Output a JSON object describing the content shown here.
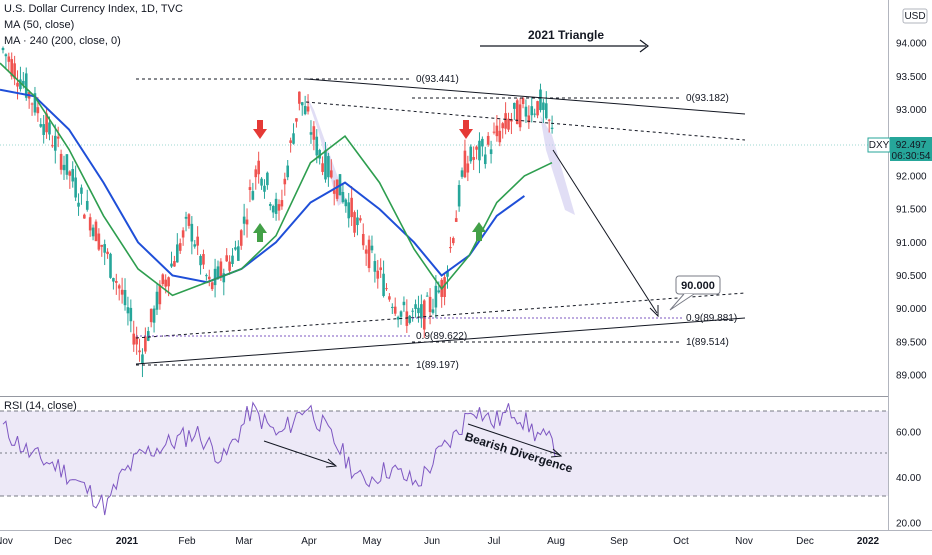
{
  "header": {
    "symbol_line": "U.S. Dollar Currency Index, 1D, TVC",
    "ma50_label": "MA (50, close)",
    "ma200_label": "MA · 240 (200, close, 0)",
    "currency_badge": "USD"
  },
  "price_tag": {
    "ticker": "DXY",
    "price": "92.497",
    "countdown": "06:30:54"
  },
  "annotations": {
    "triangle_title": "2021 Triangle",
    "target_label": "90.000",
    "divergence_label": "Bearish Divergence",
    "fib_top": "0(93.441)",
    "fib_second": "0(93.182)",
    "fib_bottom": "1(89.197)",
    "fib_second_bottom": "1(89.514)",
    "fib_mid_left": "0.9(89.622)",
    "fib_mid_right": "0.9(89.881)"
  },
  "rsi": {
    "label": "RSI (14, close)",
    "ticks": [
      "60.00",
      "40.00",
      "20.00"
    ]
  },
  "colors": {
    "up": "#26a69a",
    "down": "#ef5350",
    "ma50": "#2e9e4f",
    "ma200": "#1f4fd8",
    "rsi_line": "#7e57c2",
    "rsi_band": "#e8e4f6",
    "arrow_red": "#e53935",
    "arrow_green": "#43a047"
  },
  "chart_data": {
    "type": "candlestick",
    "price_axis": {
      "ticks": [
        "94.000",
        "93.500",
        "93.000",
        "92.500",
        "92.000",
        "91.500",
        "91.000",
        "90.500",
        "90.000",
        "89.500",
        "89.000"
      ],
      "range": [
        88.7,
        94.5
      ]
    },
    "x_axis": {
      "ticks": [
        "Nov",
        "Dec",
        "2021",
        "Feb",
        "Mar",
        "Apr",
        "May",
        "Jun",
        "Jul",
        "Aug",
        "Sep",
        "Oct",
        "Nov",
        "Dec",
        "2022"
      ]
    },
    "ma50_points": [
      [
        0,
        93.7
      ],
      [
        0.05,
        93.2
      ],
      [
        0.1,
        92.4
      ],
      [
        0.15,
        91.4
      ],
      [
        0.2,
        90.6
      ],
      [
        0.25,
        90.2
      ],
      [
        0.3,
        90.4
      ],
      [
        0.35,
        90.6
      ],
      [
        0.4,
        91.1
      ],
      [
        0.45,
        92.2
      ],
      [
        0.5,
        92.6
      ],
      [
        0.55,
        91.9
      ],
      [
        0.6,
        90.9
      ],
      [
        0.64,
        90.3
      ],
      [
        0.68,
        90.8
      ],
      [
        0.72,
        91.6
      ],
      [
        0.76,
        92.0
      ],
      [
        0.8,
        92.2
      ]
    ],
    "ma200_points": [
      [
        0,
        93.3
      ],
      [
        0.05,
        93.2
      ],
      [
        0.1,
        92.7
      ],
      [
        0.15,
        91.9
      ],
      [
        0.2,
        91.0
      ],
      [
        0.25,
        90.5
      ],
      [
        0.3,
        90.4
      ],
      [
        0.35,
        90.6
      ],
      [
        0.4,
        91.0
      ],
      [
        0.45,
        91.6
      ],
      [
        0.5,
        91.9
      ],
      [
        0.55,
        91.5
      ],
      [
        0.6,
        91.0
      ],
      [
        0.64,
        90.5
      ],
      [
        0.68,
        90.8
      ],
      [
        0.72,
        91.4
      ],
      [
        0.76,
        91.7
      ]
    ]
  }
}
